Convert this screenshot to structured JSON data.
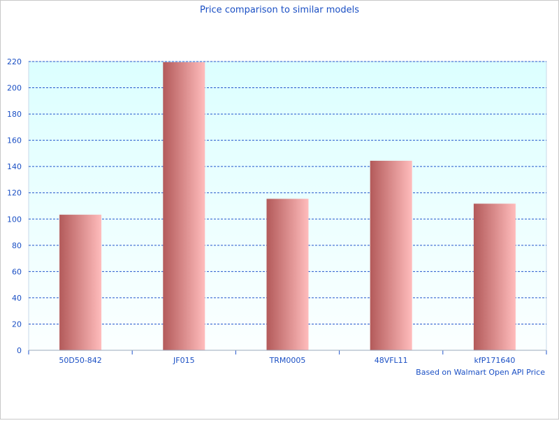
{
  "chart_data": {
    "type": "bar",
    "title": "Price comparison to similar models",
    "xlabel": "Based on Walmart Open API Price",
    "ylabel": "",
    "categories": [
      "50D50-842",
      "JF015",
      "TRM0005",
      "48VFL11",
      "kfP171640"
    ],
    "values": [
      103.3,
      219.5,
      115.4,
      144.4,
      111.7
    ],
    "ylim": [
      0,
      220
    ],
    "yticks": [
      0,
      20,
      40,
      60,
      80,
      100,
      120,
      140,
      160,
      180,
      200,
      220
    ],
    "grid": true,
    "colors": {
      "text": "#1a4fc4",
      "grid": "#2255cc",
      "plot_bg_top": "#dcffff",
      "plot_bg_bottom": "#fbffff",
      "bar_dark": "#b35a5a",
      "bar_light": "#ffbcbc"
    }
  }
}
